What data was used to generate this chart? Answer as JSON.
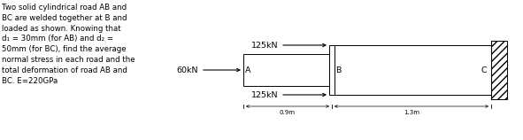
{
  "text_block": "Two solid cylindrical road AB and\nBC are welded together at B and\nloaded as shown. Knowing that\nd₁ = 30mm (for AB) and d₂ =\n50mm (for BC), find the average\nnormal stress in each road and the\ntotal deformation of road AB and\nBC. E=220GPa",
  "fig_width": 5.91,
  "fig_height": 1.58,
  "dpi": 100,
  "bg_color": "#ffffff",
  "text_color": "#000000",
  "line_color": "#000000",
  "label_60kN": "60kN",
  "label_125kN_top": "125kN",
  "label_125kN_bot": "125kN",
  "label_A": "A",
  "label_B": "B",
  "label_C": "C",
  "label_09m": "0.9m",
  "label_13m": "1.3m",
  "text_fontsize": 6.2,
  "diagram_fontsize": 6.8
}
